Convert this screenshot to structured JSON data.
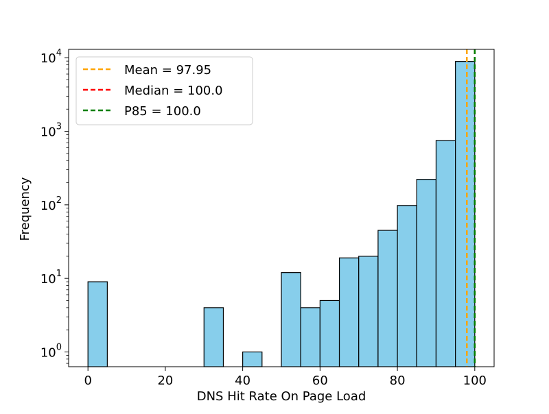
{
  "chart_data": {
    "type": "bar",
    "subtype": "histogram",
    "title": "",
    "xlabel": "DNS Hit Rate On Page Load",
    "ylabel": "Frequency",
    "yscale": "log",
    "xlim": [
      -5,
      105
    ],
    "ylim": [
      0.63,
      13000
    ],
    "xticks": [
      0,
      20,
      40,
      60,
      80,
      100
    ],
    "yticks": [
      {
        "value": 1,
        "base": "10",
        "exp": "0"
      },
      {
        "value": 10,
        "base": "10",
        "exp": "1"
      },
      {
        "value": 100,
        "base": "10",
        "exp": "2"
      },
      {
        "value": 1000,
        "base": "10",
        "exp": "3"
      },
      {
        "value": 10000,
        "base": "10",
        "exp": "4"
      }
    ],
    "bar_color": "#87CEEB",
    "edge_color": "#000000",
    "bins": [
      {
        "start": 0,
        "end": 5,
        "count": 9
      },
      {
        "start": 5,
        "end": 10,
        "count": 0
      },
      {
        "start": 10,
        "end": 15,
        "count": 0
      },
      {
        "start": 15,
        "end": 20,
        "count": 0
      },
      {
        "start": 20,
        "end": 25,
        "count": 0
      },
      {
        "start": 25,
        "end": 30,
        "count": 0
      },
      {
        "start": 30,
        "end": 35,
        "count": 4
      },
      {
        "start": 35,
        "end": 40,
        "count": 0
      },
      {
        "start": 40,
        "end": 45,
        "count": 1
      },
      {
        "start": 45,
        "end": 50,
        "count": 0
      },
      {
        "start": 50,
        "end": 55,
        "count": 12
      },
      {
        "start": 55,
        "end": 60,
        "count": 4
      },
      {
        "start": 60,
        "end": 65,
        "count": 5
      },
      {
        "start": 65,
        "end": 70,
        "count": 19
      },
      {
        "start": 70,
        "end": 75,
        "count": 20
      },
      {
        "start": 75,
        "end": 80,
        "count": 45
      },
      {
        "start": 80,
        "end": 85,
        "count": 98
      },
      {
        "start": 85,
        "end": 90,
        "count": 222
      },
      {
        "start": 90,
        "end": 95,
        "count": 750
      },
      {
        "start": 95,
        "end": 100,
        "count": 8900
      }
    ],
    "vlines": [
      {
        "label": "Mean = 97.95",
        "x": 97.95,
        "color": "#FFA500"
      },
      {
        "label": "Median = 100.0",
        "x": 100.0,
        "color": "#FF0000"
      },
      {
        "label": "P85 = 100.0",
        "x": 100.0,
        "color": "#008000"
      }
    ],
    "legend": {
      "location": "upper left"
    },
    "grid": false
  }
}
